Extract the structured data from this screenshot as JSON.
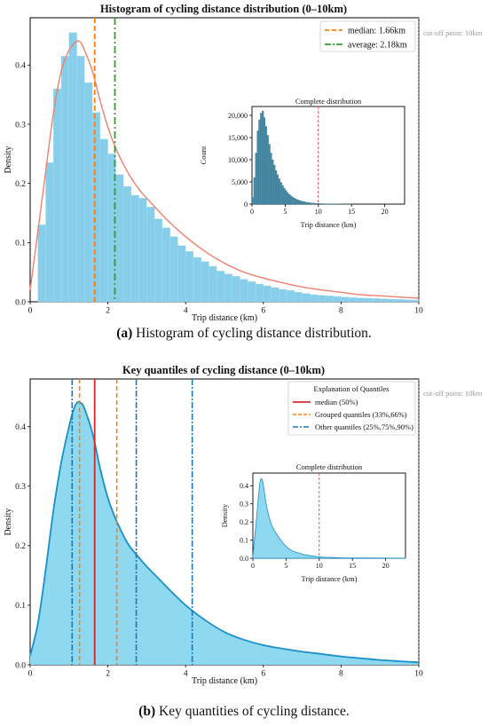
{
  "chart_data": [
    {
      "type": "bar",
      "title": "Histogram of cycling distance distribution (0–10km)",
      "xlabel": "Trip distance (km)",
      "ylabel": "Density",
      "xlim": [
        0,
        10
      ],
      "ylim": [
        0,
        0.48
      ],
      "xticks": [
        "0",
        "2",
        "4",
        "6",
        "8",
        "10"
      ],
      "yticks": [
        "0.0",
        "0.1",
        "0.2",
        "0.3",
        "0.4"
      ],
      "bin_width": 0.2,
      "bin_start": 0.2,
      "values": [
        0.13,
        0.235,
        0.36,
        0.415,
        0.455,
        0.415,
        0.37,
        0.32,
        0.275,
        0.25,
        0.215,
        0.195,
        0.18,
        0.175,
        0.16,
        0.14,
        0.125,
        0.11,
        0.095,
        0.085,
        0.075,
        0.068,
        0.06,
        0.052,
        0.047,
        0.043,
        0.038,
        0.034,
        0.03,
        0.027,
        0.024,
        0.021,
        0.019,
        0.016,
        0.014,
        0.012,
        0.011,
        0.01,
        0.009,
        0.008,
        0.007,
        0.0065,
        0.006,
        0.0055,
        0.005,
        0.0045,
        0.004,
        0.0035,
        0.003
      ],
      "kde": {
        "x": [
          0,
          0.2,
          0.4,
          0.6,
          0.8,
          1.0,
          1.2,
          1.3,
          1.4,
          1.6,
          1.8,
          2.0,
          2.2,
          2.5,
          2.8,
          3.0,
          3.5,
          4.0,
          4.5,
          5.0,
          5.5,
          6.0,
          6.5,
          7.0,
          7.5,
          8.0,
          8.5,
          9.0,
          9.5,
          10.0
        ],
        "y": [
          0.02,
          0.12,
          0.22,
          0.32,
          0.39,
          0.425,
          0.44,
          0.438,
          0.425,
          0.39,
          0.34,
          0.295,
          0.26,
          0.22,
          0.19,
          0.175,
          0.14,
          0.11,
          0.085,
          0.065,
          0.05,
          0.04,
          0.032,
          0.025,
          0.02,
          0.016,
          0.012,
          0.01,
          0.008,
          0.006
        ]
      },
      "legend": [
        {
          "name": "median: 1.66km",
          "x": 1.66,
          "color": "#ff7f0e",
          "style": "dashed"
        },
        {
          "name": "average: 2.18km",
          "x": 2.18,
          "color": "#2ca02c",
          "style": "dashdot"
        }
      ],
      "legend_position": "top-right",
      "annotation": "cut-off point: 10km",
      "cutoff": 10,
      "inset": {
        "type": "bar",
        "title": "Complete distribution",
        "xlabel": "Trip distance (km)",
        "ylabel": "Count",
        "xlim": [
          0,
          23
        ],
        "ylim": [
          0,
          22000
        ],
        "xticks": [
          "0",
          "5",
          "10",
          "15",
          "20"
        ],
        "yticks": [
          "0",
          "5,000",
          "10,000",
          "15,000",
          "20,000"
        ],
        "bin_width": 0.25,
        "values": [
          1500,
          6000,
          11500,
          16500,
          19000,
          20500,
          21000,
          19500,
          17500,
          15500,
          13500,
          11500,
          10000,
          8800,
          7600,
          6600,
          5700,
          4900,
          4200,
          3600,
          3100,
          2600,
          2200,
          1900,
          1600,
          1350,
          1150,
          1000,
          850,
          720,
          620,
          530,
          450,
          380,
          320,
          270,
          230,
          200,
          170,
          150,
          130,
          110,
          95,
          80,
          70,
          60,
          50,
          45,
          40,
          35,
          30,
          25,
          20,
          18,
          15,
          12,
          10,
          8,
          7,
          6
        ],
        "cutoff": 10
      }
    },
    {
      "type": "area",
      "title": "Key quantiles of cycling distance (0–10km)",
      "xlabel": "Trip distance (km)",
      "ylabel": "Density",
      "xlim": [
        0,
        10
      ],
      "ylim": [
        0,
        0.48
      ],
      "xticks": [
        "0",
        "2",
        "4",
        "6",
        "8",
        "10"
      ],
      "yticks": [
        "0.0",
        "0.1",
        "0.2",
        "0.3",
        "0.4"
      ],
      "kde": {
        "x": [
          0,
          0.2,
          0.4,
          0.6,
          0.8,
          1.0,
          1.1,
          1.2,
          1.3,
          1.4,
          1.6,
          1.8,
          2.0,
          2.2,
          2.5,
          2.8,
          3.0,
          3.3,
          3.6,
          4.0,
          4.5,
          5.0,
          5.5,
          6.0,
          6.5,
          7.0,
          7.5,
          8.0,
          8.5,
          9.0,
          9.5,
          10.0
        ],
        "y": [
          0.015,
          0.07,
          0.16,
          0.26,
          0.34,
          0.4,
          0.425,
          0.44,
          0.44,
          0.43,
          0.39,
          0.33,
          0.28,
          0.245,
          0.205,
          0.18,
          0.165,
          0.145,
          0.125,
          0.1,
          0.075,
          0.055,
          0.042,
          0.033,
          0.027,
          0.022,
          0.018,
          0.014,
          0.011,
          0.008,
          0.006,
          0.004
        ]
      },
      "legend_title": "Explanation of Quantiles",
      "legend": [
        {
          "name": "median (50%)",
          "color": "#d62728",
          "style": "solid"
        },
        {
          "name": "Grouped quantiles (33%,66%)",
          "color": "#ff7f0e",
          "style": "dashed"
        },
        {
          "name": "Other quantiles (25%,75%,90%)",
          "color": "#1f77b4",
          "style": "dashdot"
        }
      ],
      "legend_position": "top-right",
      "quantile_lines": [
        {
          "x": 1.66,
          "group": 0
        },
        {
          "x": 1.27,
          "group": 1
        },
        {
          "x": 2.23,
          "group": 1
        },
        {
          "x": 1.08,
          "group": 2
        },
        {
          "x": 2.73,
          "group": 2
        },
        {
          "x": 4.17,
          "group": 2
        }
      ],
      "annotation": "cut-off point: 10km",
      "cutoff": 10,
      "inset": {
        "type": "area",
        "title": "Complete distribution",
        "xlabel": "Trip distance (km)",
        "ylabel": "Density",
        "xlim": [
          0,
          23
        ],
        "ylim": [
          0,
          0.47
        ],
        "xticks": [
          "0",
          "5",
          "10",
          "15",
          "20"
        ],
        "yticks": [
          "0.0",
          "0.1",
          "0.2",
          "0.3",
          "0.4"
        ],
        "x": [
          0,
          0.5,
          1.0,
          1.3,
          1.6,
          2.0,
          2.5,
          3.0,
          4.0,
          5.0,
          6.0,
          7.0,
          8.0,
          10.0,
          12.0,
          15.0,
          20.0,
          23.0
        ],
        "y": [
          0.01,
          0.2,
          0.4,
          0.44,
          0.4,
          0.3,
          0.22,
          0.17,
          0.11,
          0.065,
          0.04,
          0.028,
          0.018,
          0.008,
          0.004,
          0.002,
          0.001,
          0.0005
        ],
        "cutoff": 10
      }
    }
  ],
  "captions": {
    "a_label": "(a)",
    "a_text": " Histogram of cycling distance distribution.",
    "b_label": "(b)",
    "b_text": " Key quantities of cycling distance."
  },
  "colors": {
    "hist_fill": "#87ceeb",
    "kde_line": "#f08070",
    "area_fill": "#8ed8f0",
    "area_line": "#1a8fc9",
    "inset_bar": "#4a8ca8",
    "cutoff_line": "#e05050"
  }
}
